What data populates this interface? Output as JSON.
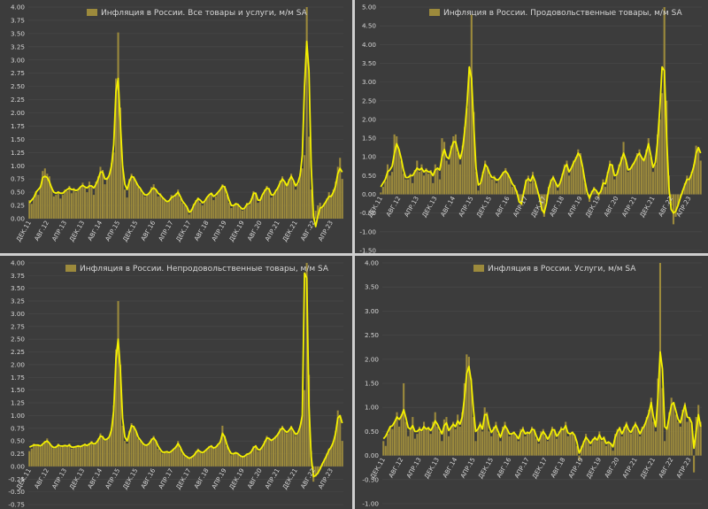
{
  "charts": [
    {
      "title": "Инфляция в России. Все товары и услуги, м/м SA",
      "ylim": [
        0,
        4
      ],
      "yticks": [
        "0.00",
        "0.25",
        "0.50",
        "0.75",
        "1.00",
        "1.25",
        "1.50",
        "1.75",
        "2.00",
        "2.25",
        "2.50",
        "2.75",
        "3.00",
        "3.25",
        "3.50",
        "3.75",
        "4.00"
      ],
      "xticks": [
        "ДЕК.11",
        "АВГ.12",
        "АПР.13",
        "ДЕК.13",
        "АВГ.14",
        "АПР.15",
        "ДЕК.15",
        "АВГ.16",
        "АПР.17",
        "ДЕК.17",
        "АВГ.18",
        "АПР.19",
        "ДЕК.19",
        "АВГ.20",
        "АПР.21",
        "ДЕК.21",
        "АВГ.22",
        "АПР.23"
      ]
    },
    {
      "title": "Инфляция в России. Продовольственные товары, м/м SA",
      "ylim": [
        -1.5,
        5
      ],
      "yticks": [
        "-1.50",
        "-1.00",
        "-0.50",
        "0.00",
        "0.50",
        "1.00",
        "1.50",
        "2.00",
        "2.50",
        "3.00",
        "3.50",
        "4.00",
        "4.50",
        "5.00"
      ],
      "xticks": [
        "ДЕК.11",
        "АВГ.12",
        "АПР.13",
        "ДЕК.13",
        "АВГ.14",
        "АПР.15",
        "ДЕК.15",
        "АВГ.16",
        "АПР.17",
        "ДЕК.17",
        "АВГ.18",
        "АПР.19",
        "ДЕК.19",
        "АВГ.20",
        "АПР.21",
        "ДЕК.21",
        "АВГ.22",
        "АПР.23"
      ]
    },
    {
      "title": "Инфляция в России. Непродовольственные товары, м/м SA",
      "ylim": [
        -0.75,
        4
      ],
      "yticks": [
        "-0.75",
        "-0.50",
        "-0.25",
        "0.00",
        "0.25",
        "0.50",
        "0.75",
        "1.00",
        "1.25",
        "1.50",
        "1.75",
        "2.00",
        "2.25",
        "2.50",
        "2.75",
        "3.00",
        "3.25",
        "3.50",
        "3.75",
        "4.00"
      ],
      "xticks": [
        "ДЕК.11",
        "АВГ.12",
        "АПР.13",
        "ДЕК.13",
        "АВГ.14",
        "АПР.15",
        "ДЕК.15",
        "АВГ.16",
        "АПР.17",
        "ДЕК.17",
        "АВГ.18",
        "АПР.19",
        "ДЕК.19",
        "АВГ.20",
        "АПР.21",
        "ДЕК.21",
        "АВГ.22",
        "АПР.23"
      ]
    },
    {
      "title": "Инфляция в России. Услуги, м/м SA",
      "ylim": [
        -1,
        4
      ],
      "yticks": [
        "-1.00",
        "-0.50",
        "0.00",
        "0.50",
        "1.00",
        "1.50",
        "2.00",
        "2.50",
        "3.00",
        "3.50",
        "4.00"
      ],
      "xticks": [
        "ДЕК.11",
        "АВГ.12",
        "АПР.13",
        "ДЕК.13",
        "АВГ.14",
        "АПР.15",
        "ДЕК.15",
        "АВГ.16",
        "АПР.17",
        "ДЕК.17",
        "АВГ.18",
        "АПР.19",
        "ДЕК.19",
        "АВГ.20",
        "АПР.21",
        "ДЕК.21",
        "АВГ.22",
        "АПР.23"
      ]
    }
  ],
  "colors": {
    "bar": "#9c8a3c",
    "line": "#f4f000",
    "background": "#3c3c3c",
    "grid": "#4a4a4a",
    "text": "#d6d6d6"
  },
  "chart_data": [
    {
      "type": "bar",
      "title": "Инфляция в России. Все товары и услуги, м/м SA",
      "series_name": "Инфляция в России. Все товары и услуги, м/м SA",
      "ylim": [
        0,
        4
      ],
      "x_start": "2011-12",
      "bars": [
        0.35,
        0.28,
        0.38,
        0.52,
        0.45,
        0.62,
        0.9,
        0.95,
        0.85,
        0.8,
        0.6,
        0.42,
        0.45,
        0.52,
        0.38,
        0.45,
        0.55,
        0.52,
        0.62,
        0.48,
        0.58,
        0.5,
        0.55,
        0.6,
        0.68,
        0.58,
        0.5,
        0.7,
        0.62,
        0.45,
        0.7,
        0.8,
        0.98,
        0.92,
        0.65,
        0.78,
        0.85,
        1.05,
        1.25,
        2.65,
        3.52,
        2.1,
        1.0,
        0.55,
        0.4,
        0.75,
        0.85,
        0.8,
        0.7,
        0.6,
        0.55,
        0.48,
        0.42,
        0.45,
        0.5,
        0.6,
        0.65,
        0.55,
        0.42,
        0.48,
        0.4,
        0.35,
        0.3,
        0.35,
        0.45,
        0.4,
        0.48,
        0.55,
        0.38,
        0.3,
        0.25,
        0.22,
        0.08,
        0.18,
        0.28,
        0.35,
        0.4,
        0.3,
        0.25,
        0.32,
        0.4,
        0.45,
        0.48,
        0.35,
        0.42,
        0.5,
        0.55,
        0.65,
        0.62,
        0.45,
        0.3,
        0.2,
        0.25,
        0.3,
        0.28,
        0.2,
        0.15,
        0.2,
        0.3,
        0.25,
        0.38,
        0.52,
        0.48,
        0.3,
        0.35,
        0.45,
        0.55,
        0.62,
        0.58,
        0.4,
        0.45,
        0.55,
        0.6,
        0.72,
        0.8,
        0.7,
        0.6,
        0.75,
        0.85,
        0.7,
        0.55,
        0.65,
        0.85,
        0.95,
        1.2,
        4.0,
        1.55,
        0.55,
        0.1,
        0.15,
        0.25,
        0.3,
        0.2,
        0.3,
        0.38,
        0.5,
        0.45,
        0.55,
        0.7,
        0.98,
        1.15,
        0.75
      ],
      "line": [
        0.3,
        0.35,
        0.4,
        0.5,
        0.55,
        0.6,
        0.78,
        0.8,
        0.78,
        0.7,
        0.58,
        0.5,
        0.48,
        0.5,
        0.48,
        0.48,
        0.52,
        0.55,
        0.58,
        0.55,
        0.55,
        0.53,
        0.55,
        0.6,
        0.63,
        0.6,
        0.58,
        0.62,
        0.62,
        0.58,
        0.65,
        0.75,
        0.88,
        0.88,
        0.75,
        0.75,
        0.82,
        1.0,
        1.4,
        2.4,
        2.65,
        1.8,
        1.0,
        0.65,
        0.55,
        0.7,
        0.8,
        0.78,
        0.7,
        0.62,
        0.57,
        0.5,
        0.45,
        0.45,
        0.48,
        0.55,
        0.58,
        0.55,
        0.48,
        0.45,
        0.4,
        0.36,
        0.32,
        0.34,
        0.4,
        0.42,
        0.45,
        0.5,
        0.42,
        0.33,
        0.28,
        0.22,
        0.12,
        0.15,
        0.25,
        0.32,
        0.38,
        0.35,
        0.3,
        0.33,
        0.4,
        0.45,
        0.48,
        0.42,
        0.45,
        0.5,
        0.55,
        0.62,
        0.6,
        0.48,
        0.35,
        0.25,
        0.25,
        0.28,
        0.27,
        0.22,
        0.18,
        0.2,
        0.27,
        0.28,
        0.35,
        0.48,
        0.48,
        0.35,
        0.35,
        0.45,
        0.52,
        0.58,
        0.56,
        0.45,
        0.45,
        0.52,
        0.58,
        0.68,
        0.75,
        0.7,
        0.62,
        0.72,
        0.8,
        0.72,
        0.62,
        0.68,
        0.82,
        1.2,
        2.5,
        3.35,
        2.8,
        1.0,
        0.05,
        -0.15,
        0.05,
        0.2,
        0.22,
        0.28,
        0.35,
        0.42,
        0.42,
        0.5,
        0.62,
        0.85,
        0.95,
        0.88
      ]
    },
    {
      "type": "bar",
      "title": "Инфляция в России. Продовольственные товары, м/м SA",
      "series_name": "Инфляция в России. Продовольственные товары, м/м SA",
      "ylim": [
        -1.5,
        5
      ],
      "x_start": "2011-12",
      "bars": [
        0.05,
        0.2,
        0.35,
        0.8,
        0.5,
        0.6,
        1.6,
        1.55,
        1.2,
        0.9,
        0.55,
        0.4,
        0.4,
        0.55,
        0.3,
        0.65,
        0.9,
        0.6,
        0.8,
        0.5,
        0.7,
        0.55,
        0.65,
        0.3,
        0.8,
        0.7,
        0.4,
        1.5,
        1.4,
        0.9,
        0.8,
        1.3,
        1.55,
        1.6,
        1.1,
        0.8,
        1.3,
        1.8,
        2.3,
        3.4,
        4.8,
        2.2,
        0.6,
        0.1,
        0.3,
        0.6,
        0.9,
        0.7,
        0.5,
        0.4,
        0.5,
        0.3,
        0.4,
        0.5,
        0.6,
        0.7,
        0.55,
        0.4,
        0.2,
        0.25,
        0.1,
        -0.2,
        -0.3,
        0.1,
        0.4,
        0.5,
        0.3,
        0.6,
        0.3,
        0.1,
        -0.1,
        -0.45,
        -0.6,
        -0.2,
        0.2,
        0.4,
        0.5,
        0.3,
        0.1,
        0.3,
        0.55,
        0.8,
        0.9,
        0.5,
        0.7,
        0.9,
        1.0,
        1.2,
        1.1,
        0.7,
        0.3,
        0.0,
        -0.2,
        0.1,
        0.2,
        0.1,
        -0.1,
        0.1,
        0.4,
        0.2,
        0.6,
        0.9,
        0.8,
        0.4,
        0.5,
        0.8,
        1.0,
        1.4,
        0.9,
        0.6,
        0.7,
        0.8,
        0.9,
        1.1,
        1.2,
        1.0,
        0.9,
        1.2,
        1.5,
        1.0,
        0.6,
        0.8,
        1.6,
        2.0,
        2.7,
        5.0,
        2.5,
        0.5,
        -0.3,
        -0.8,
        -0.6,
        -0.3,
        -0.1,
        0.1,
        0.3,
        0.5,
        0.4,
        0.6,
        0.8,
        1.3,
        1.2,
        0.9
      ],
      "line": [
        0.2,
        0.3,
        0.4,
        0.6,
        0.65,
        0.75,
        1.1,
        1.35,
        1.2,
        0.95,
        0.65,
        0.45,
        0.45,
        0.5,
        0.5,
        0.6,
        0.7,
        0.65,
        0.7,
        0.6,
        0.65,
        0.6,
        0.6,
        0.5,
        0.65,
        0.7,
        0.65,
        1.0,
        1.2,
        1.0,
        0.95,
        1.2,
        1.4,
        1.4,
        1.15,
        0.95,
        1.2,
        1.7,
        2.4,
        3.4,
        3.1,
        1.8,
        0.7,
        0.25,
        0.3,
        0.55,
        0.8,
        0.72,
        0.55,
        0.45,
        0.45,
        0.38,
        0.4,
        0.48,
        0.58,
        0.62,
        0.55,
        0.42,
        0.28,
        0.2,
        0.05,
        -0.2,
        -0.25,
        0.05,
        0.35,
        0.42,
        0.35,
        0.5,
        0.35,
        0.12,
        -0.1,
        -0.4,
        -0.5,
        -0.25,
        0.15,
        0.35,
        0.45,
        0.32,
        0.2,
        0.3,
        0.5,
        0.72,
        0.8,
        0.6,
        0.7,
        0.85,
        0.95,
        1.1,
        1.0,
        0.72,
        0.35,
        0.05,
        -0.1,
        0.05,
        0.15,
        0.1,
        0.0,
        0.08,
        0.3,
        0.28,
        0.55,
        0.8,
        0.78,
        0.5,
        0.52,
        0.72,
        0.9,
        1.1,
        0.92,
        0.65,
        0.68,
        0.78,
        0.88,
        1.02,
        1.1,
        0.98,
        0.9,
        1.1,
        1.35,
        1.05,
        0.72,
        0.85,
        1.4,
        2.3,
        3.4,
        3.3,
        1.5,
        0.2,
        -0.4,
        -0.5,
        -0.45,
        -0.3,
        -0.1,
        0.08,
        0.25,
        0.4,
        0.4,
        0.55,
        0.75,
        1.1,
        1.25,
        1.1
      ]
    },
    {
      "type": "bar",
      "title": "Инфляция в России. Непродовольственные товары, м/м SA",
      "series_name": "Инфляция в России. Непродовольственные товары, м/м SA",
      "ylim": [
        -0.75,
        4
      ],
      "x_start": "2011-12",
      "bars": [
        0.3,
        0.35,
        0.45,
        0.4,
        0.42,
        0.38,
        0.45,
        0.5,
        0.55,
        0.45,
        0.4,
        0.35,
        0.4,
        0.45,
        0.38,
        0.4,
        0.42,
        0.4,
        0.45,
        0.35,
        0.38,
        0.4,
        0.42,
        0.38,
        0.42,
        0.45,
        0.4,
        0.45,
        0.5,
        0.42,
        0.45,
        0.55,
        0.65,
        0.6,
        0.5,
        0.55,
        0.6,
        0.75,
        1.2,
        2.3,
        3.25,
        2.0,
        0.8,
        0.5,
        0.45,
        0.7,
        0.85,
        0.8,
        0.7,
        0.55,
        0.5,
        0.45,
        0.4,
        0.42,
        0.45,
        0.55,
        0.6,
        0.5,
        0.35,
        0.3,
        0.25,
        0.28,
        0.3,
        0.25,
        0.3,
        0.35,
        0.4,
        0.5,
        0.35,
        0.25,
        0.2,
        0.18,
        0.15,
        0.18,
        0.22,
        0.3,
        0.35,
        0.28,
        0.25,
        0.3,
        0.35,
        0.4,
        0.42,
        0.35,
        0.38,
        0.45,
        0.5,
        0.8,
        0.6,
        0.4,
        0.3,
        0.22,
        0.25,
        0.28,
        0.25,
        0.2,
        0.18,
        0.2,
        0.25,
        0.25,
        0.3,
        0.4,
        0.42,
        0.3,
        0.32,
        0.4,
        0.5,
        0.6,
        0.55,
        0.5,
        0.55,
        0.6,
        0.65,
        0.75,
        0.8,
        0.7,
        0.65,
        0.72,
        0.8,
        0.7,
        0.6,
        0.65,
        0.8,
        1.0,
        1.5,
        4.0,
        1.8,
        0.3,
        -0.3,
        -0.2,
        -0.15,
        -0.05,
        0.05,
        0.15,
        0.25,
        0.35,
        0.4,
        0.5,
        0.7,
        1.1,
        1.0,
        0.5
      ],
      "line": [
        0.38,
        0.4,
        0.42,
        0.42,
        0.42,
        0.4,
        0.44,
        0.48,
        0.5,
        0.46,
        0.4,
        0.37,
        0.38,
        0.42,
        0.4,
        0.4,
        0.41,
        0.4,
        0.42,
        0.38,
        0.38,
        0.39,
        0.4,
        0.39,
        0.41,
        0.43,
        0.41,
        0.44,
        0.47,
        0.44,
        0.46,
        0.52,
        0.6,
        0.58,
        0.52,
        0.54,
        0.58,
        0.72,
        1.1,
        2.1,
        2.5,
        1.9,
        0.95,
        0.58,
        0.5,
        0.65,
        0.8,
        0.78,
        0.7,
        0.58,
        0.52,
        0.46,
        0.42,
        0.42,
        0.45,
        0.52,
        0.56,
        0.5,
        0.4,
        0.33,
        0.28,
        0.28,
        0.29,
        0.27,
        0.3,
        0.34,
        0.38,
        0.45,
        0.38,
        0.28,
        0.22,
        0.19,
        0.16,
        0.18,
        0.21,
        0.27,
        0.32,
        0.29,
        0.27,
        0.3,
        0.34,
        0.38,
        0.4,
        0.36,
        0.38,
        0.43,
        0.48,
        0.65,
        0.58,
        0.43,
        0.32,
        0.25,
        0.25,
        0.27,
        0.25,
        0.21,
        0.19,
        0.2,
        0.24,
        0.25,
        0.29,
        0.37,
        0.4,
        0.33,
        0.33,
        0.39,
        0.47,
        0.56,
        0.55,
        0.51,
        0.54,
        0.58,
        0.63,
        0.71,
        0.76,
        0.71,
        0.67,
        0.71,
        0.77,
        0.7,
        0.63,
        0.66,
        0.78,
        1.0,
        3.8,
        3.7,
        1.2,
        0.2,
        -0.2,
        -0.18,
        -0.13,
        -0.05,
        0.05,
        0.13,
        0.22,
        0.32,
        0.38,
        0.48,
        0.65,
        0.95,
        1.0,
        0.85
      ]
    },
    {
      "type": "bar",
      "title": "Инфляция в России. Услуги, м/м SA",
      "series_name": "Инфляция в России. Услуги, м/м SA",
      "ylim": [
        -1,
        4
      ],
      "x_start": "2011-12",
      "bars": [
        0.3,
        0.2,
        0.45,
        0.6,
        0.55,
        0.7,
        0.9,
        0.6,
        0.85,
        1.5,
        0.7,
        0.4,
        0.55,
        0.8,
        0.35,
        0.45,
        0.6,
        0.5,
        0.7,
        0.55,
        0.6,
        0.45,
        0.7,
        0.9,
        0.6,
        0.5,
        0.3,
        0.75,
        0.8,
        0.4,
        0.6,
        0.7,
        0.55,
        0.85,
        0.6,
        0.9,
        1.5,
        2.1,
        2.05,
        1.6,
        0.8,
        0.3,
        0.55,
        0.7,
        0.5,
        1.0,
        0.9,
        0.5,
        0.4,
        0.6,
        0.7,
        0.45,
        0.3,
        0.6,
        0.7,
        0.55,
        0.4,
        0.45,
        0.5,
        0.4,
        0.3,
        0.55,
        0.6,
        0.4,
        0.5,
        0.45,
        0.6,
        0.55,
        0.35,
        0.25,
        0.5,
        0.55,
        0.4,
        0.3,
        0.45,
        0.6,
        0.55,
        0.35,
        0.5,
        0.6,
        0.55,
        0.7,
        0.4,
        0.45,
        0.5,
        0.4,
        0.2,
        -0.1,
        0.2,
        0.3,
        0.45,
        0.3,
        0.2,
        0.35,
        0.4,
        0.3,
        0.5,
        0.3,
        0.4,
        0.2,
        0.3,
        0.25,
        0.1,
        0.45,
        0.55,
        0.6,
        0.4,
        0.6,
        0.7,
        0.5,
        0.45,
        0.6,
        0.7,
        0.55,
        0.4,
        0.6,
        0.65,
        0.8,
        0.95,
        1.2,
        0.7,
        0.5,
        1.6,
        4.0,
        1.4,
        0.3,
        0.6,
        0.9,
        1.2,
        1.1,
        0.85,
        0.7,
        0.6,
        0.95,
        1.1,
        0.7,
        0.8,
        0.65,
        -0.35,
        0.8,
        1.05,
        0.7
      ],
      "line": [
        0.35,
        0.4,
        0.5,
        0.6,
        0.62,
        0.7,
        0.8,
        0.75,
        0.82,
        0.95,
        0.78,
        0.58,
        0.55,
        0.62,
        0.5,
        0.5,
        0.55,
        0.52,
        0.6,
        0.55,
        0.57,
        0.52,
        0.6,
        0.72,
        0.65,
        0.55,
        0.45,
        0.62,
        0.68,
        0.52,
        0.58,
        0.65,
        0.6,
        0.72,
        0.65,
        0.8,
        1.2,
        1.7,
        1.85,
        1.55,
        0.95,
        0.5,
        0.55,
        0.65,
        0.55,
        0.85,
        0.85,
        0.6,
        0.48,
        0.55,
        0.62,
        0.5,
        0.38,
        0.52,
        0.62,
        0.55,
        0.45,
        0.45,
        0.48,
        0.42,
        0.35,
        0.48,
        0.55,
        0.45,
        0.48,
        0.46,
        0.55,
        0.53,
        0.4,
        0.3,
        0.42,
        0.5,
        0.43,
        0.34,
        0.42,
        0.54,
        0.53,
        0.4,
        0.46,
        0.55,
        0.54,
        0.62,
        0.47,
        0.45,
        0.48,
        0.42,
        0.28,
        0.05,
        0.15,
        0.27,
        0.38,
        0.32,
        0.25,
        0.32,
        0.37,
        0.32,
        0.43,
        0.33,
        0.37,
        0.25,
        0.28,
        0.25,
        0.18,
        0.38,
        0.5,
        0.57,
        0.45,
        0.55,
        0.65,
        0.53,
        0.48,
        0.57,
        0.65,
        0.57,
        0.45,
        0.55,
        0.62,
        0.75,
        0.88,
        1.1,
        0.8,
        0.6,
        1.2,
        2.15,
        1.8,
        0.6,
        0.55,
        0.8,
        1.05,
        1.1,
        0.92,
        0.75,
        0.68,
        0.88,
        1.05,
        0.8,
        0.78,
        0.68,
        0.15,
        0.5,
        0.85,
        0.6
      ]
    }
  ]
}
